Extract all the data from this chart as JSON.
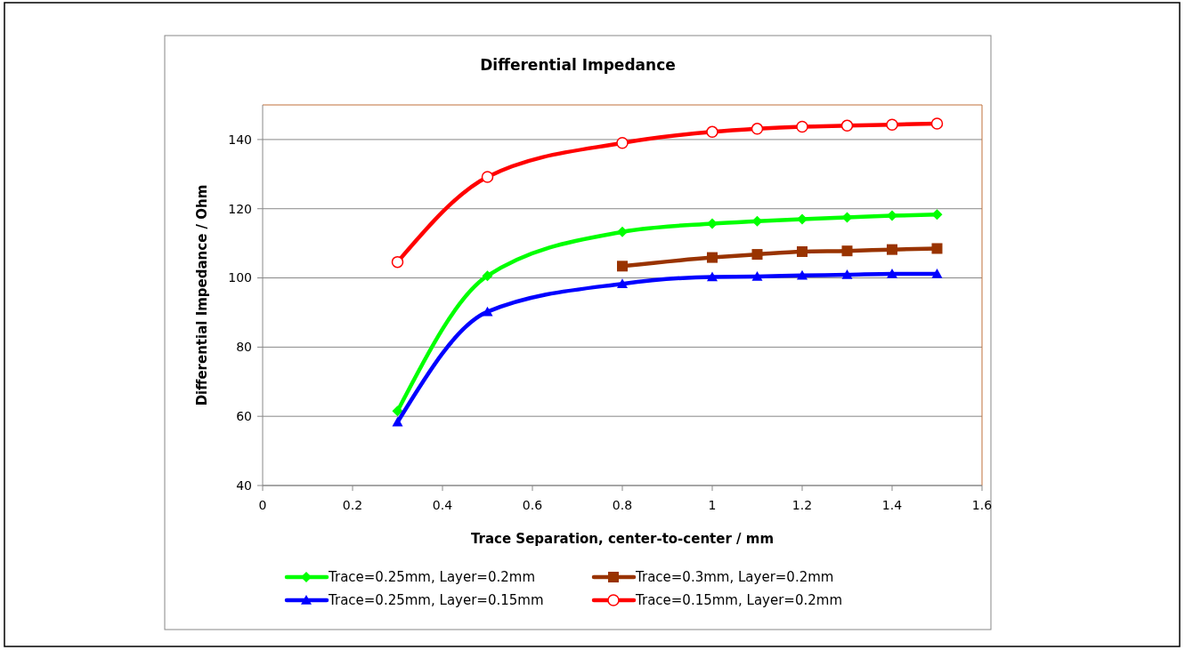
{
  "chart_data": {
    "type": "line",
    "title": "Differential Impedance",
    "xlabel": "Trace Separation, center-to-center / mm",
    "ylabel": "Differential Impedance / Ohm",
    "xlim": [
      0,
      1.6
    ],
    "xticks": [
      0,
      0.2,
      0.4,
      0.6,
      0.8,
      1,
      1.2,
      1.4,
      1.6
    ],
    "ylim": [
      40,
      150
    ],
    "yticks": [
      40,
      60,
      80,
      100,
      120,
      140
    ],
    "grid": "y",
    "legend": "bottom",
    "series": [
      {
        "name": "Trace=0.25mm, Layer=0.2mm",
        "color": "#00ff00",
        "marker": "diamond",
        "x": [
          0.3,
          0.5,
          0.8,
          1,
          1.1,
          1.2,
          1.3,
          1.4,
          1.5
        ],
        "values": [
          61.5,
          100.6,
          113.3,
          115.7,
          116.4,
          117.0,
          117.5,
          118.0,
          118.3
        ]
      },
      {
        "name": "Trace=0.3mm, Layer=0.2mm",
        "color": "#993300",
        "marker": "square",
        "x": [
          0.8,
          1,
          1.1,
          1.2,
          1.3,
          1.4,
          1.5
        ],
        "values": [
          103.4,
          105.9,
          106.8,
          107.6,
          107.8,
          108.2,
          108.5
        ]
      },
      {
        "name": "Trace=0.25mm, Layer=0.15mm",
        "color": "#0000ff",
        "marker": "triangle",
        "x": [
          0.3,
          0.5,
          0.8,
          1,
          1.1,
          1.2,
          1.3,
          1.4,
          1.5
        ],
        "values": [
          58.3,
          90.2,
          98.3,
          100.3,
          100.4,
          100.7,
          100.9,
          101.2,
          101.2
        ]
      },
      {
        "name": "Trace=0.15mm, Layer=0.2mm",
        "color": "#ff0000",
        "marker": "circle",
        "x": [
          0.3,
          0.5,
          0.8,
          1,
          1.1,
          1.2,
          1.3,
          1.4,
          1.5
        ],
        "values": [
          104.6,
          129.2,
          139.0,
          142.2,
          143.1,
          143.7,
          144.0,
          144.3,
          144.6
        ]
      }
    ]
  }
}
